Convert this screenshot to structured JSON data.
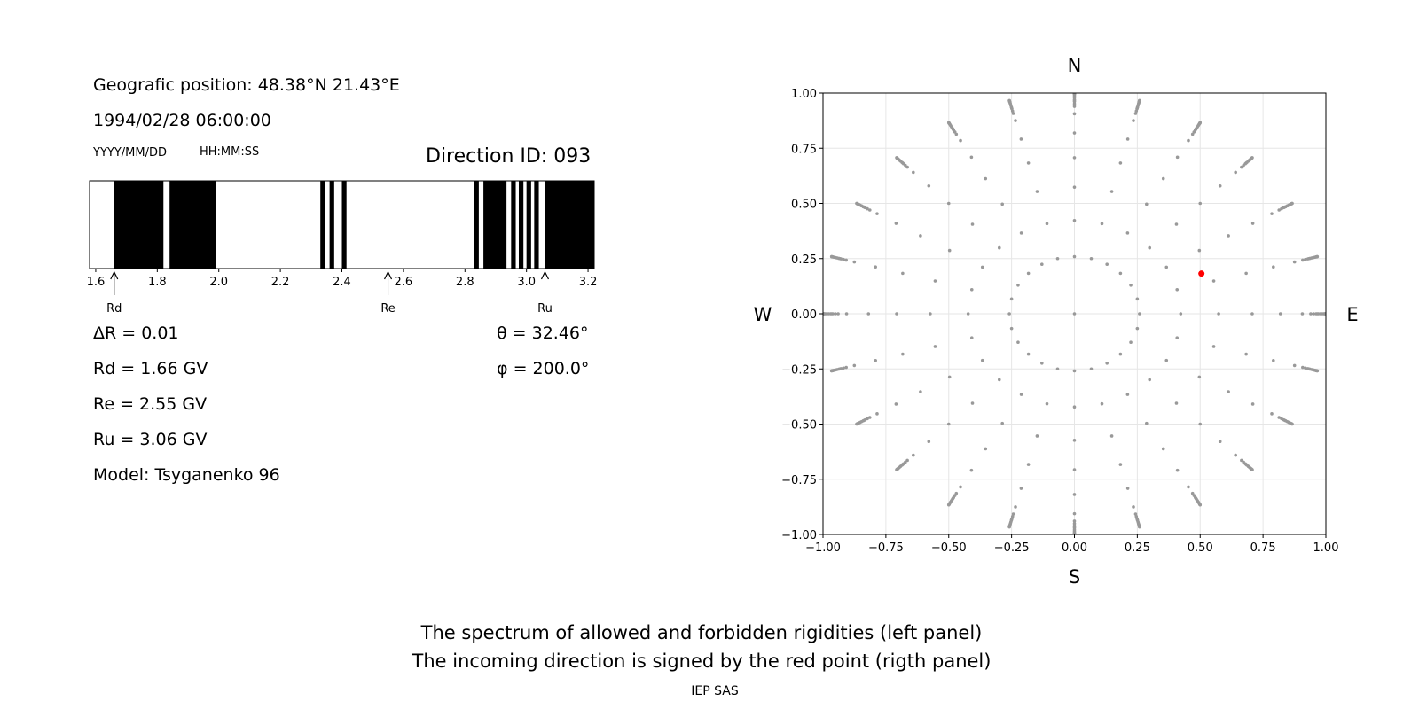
{
  "info": {
    "position": "Geografic position: 48.38°N 21.43°E",
    "datetime": "1994/02/28 06:00:00",
    "date_format": "YYYY/MM/DD",
    "time_format": "HH:MM:SS",
    "direction_id": "Direction ID: 093",
    "delta_r": "ΔR = 0.01",
    "theta": "θ = 32.46°",
    "phi": "φ = 200.0°",
    "rd": "Rd = 1.66 GV",
    "re": "Re = 2.55 GV",
    "ru": "Ru = 3.06 GV",
    "model": "Model: Tsyganenko 96"
  },
  "caption": {
    "line1": "The spectrum of allowed and forbidden rigidities (left panel)",
    "line2": "The incoming direction is signed by the red point (rigth panel)",
    "credit": "IEP SAS"
  },
  "chart_data": [
    {
      "type": "spectrum",
      "xlim": [
        1.58,
        3.22
      ],
      "xticks": [
        1.6,
        1.8,
        2.0,
        2.2,
        2.4,
        2.6,
        2.8,
        3.0,
        3.2
      ],
      "tick_labels": [
        "1.6",
        "1.8",
        "2.0",
        "2.2",
        "2.4",
        "2.6",
        "2.8",
        "3.0",
        "3.2"
      ],
      "forbidden_bands": [
        [
          1.66,
          1.82
        ],
        [
          1.84,
          1.99
        ],
        [
          2.33,
          2.345
        ],
        [
          2.36,
          2.375
        ],
        [
          2.4,
          2.415
        ],
        [
          2.83,
          2.845
        ],
        [
          2.86,
          2.935
        ],
        [
          2.95,
          2.965
        ],
        [
          2.975,
          2.99
        ],
        [
          3.0,
          3.015
        ],
        [
          3.025,
          3.04
        ],
        [
          3.06,
          3.22
        ]
      ],
      "markers": [
        {
          "label": "Rd",
          "value": 1.66
        },
        {
          "label": "Re",
          "value": 2.55
        },
        {
          "label": "Ru",
          "value": 3.06
        }
      ],
      "colors": {
        "forbidden": "#000000",
        "allowed": "#ffffff"
      }
    },
    {
      "type": "scatter",
      "xlim": [
        -1.0,
        1.0
      ],
      "ylim": [
        -1.0,
        1.0
      ],
      "xticks": [
        -1.0,
        -0.75,
        -0.5,
        -0.25,
        0.0,
        0.25,
        0.5,
        0.75,
        1.0
      ],
      "yticks": [
        -1.0,
        -0.75,
        -0.5,
        -0.25,
        0.0,
        0.25,
        0.5,
        0.75,
        1.0
      ],
      "xtick_labels": [
        "−1.00",
        "−0.75",
        "−0.50",
        "−0.25",
        "0.00",
        "0.25",
        "0.50",
        "0.75",
        "1.00"
      ],
      "ytick_labels": [
        "−1.00",
        "−0.75",
        "−0.50",
        "−0.25",
        "0.00",
        "0.25",
        "0.50",
        "0.75",
        "1.00"
      ],
      "compass": {
        "north": "N",
        "south": "S",
        "west": "W",
        "east": "E"
      },
      "grid": true,
      "grid_pattern": {
        "zenith_angles_deg": [
          0,
          15,
          25,
          35,
          45,
          55,
          65,
          75,
          80,
          85,
          90
        ],
        "radius": "sin(zenith)",
        "azimuth_step_deg": 15,
        "extended_zenith_range_deg": [
          70,
          90
        ],
        "extended_zenith_step_deg": 2
      },
      "highlight": {
        "x": 0.505,
        "y": 0.182,
        "color": "#ff0000"
      },
      "point_color": "#999999"
    }
  ]
}
